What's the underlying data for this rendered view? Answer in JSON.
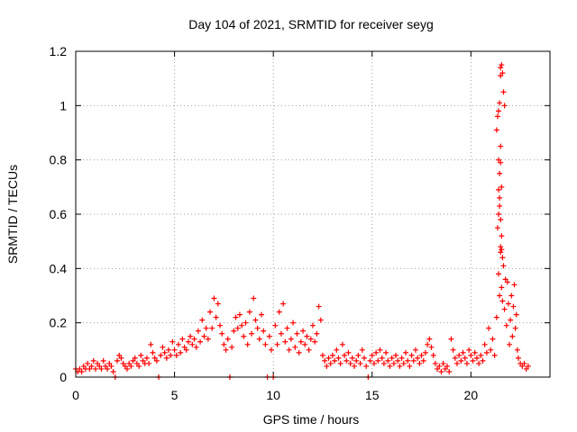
{
  "chart_data": {
    "type": "scatter",
    "title": "Day 104 of 2021, SRMTID for receiver seyg",
    "xlabel": "GPS time / hours",
    "ylabel": "SRMTID / TECUs",
    "xlim": [
      0,
      24
    ],
    "ylim": [
      0,
      1.2
    ],
    "xticks": [
      0,
      5,
      10,
      15,
      20
    ],
    "yticks": [
      0,
      0.2,
      0.4,
      0.6,
      0.8,
      1,
      1.2
    ],
    "xtick_labels": [
      "0",
      "5",
      "10",
      "15",
      "20"
    ],
    "ytick_labels": [
      "0",
      "0.2",
      "0.4",
      "0.6",
      "0.8",
      "1",
      "1.2"
    ],
    "grid": true,
    "marker": "+",
    "series": [
      {
        "name": "SRMTID",
        "color": "#ff0000",
        "points": [
          [
            0.0,
            0.03
          ],
          [
            0.1,
            0.02
          ],
          [
            0.2,
            0.03
          ],
          [
            0.3,
            0.02
          ],
          [
            0.4,
            0.04
          ],
          [
            0.5,
            0.03
          ],
          [
            0.6,
            0.05
          ],
          [
            0.7,
            0.03
          ],
          [
            0.8,
            0.04
          ],
          [
            0.9,
            0.06
          ],
          [
            1.0,
            0.03
          ],
          [
            1.1,
            0.05
          ],
          [
            1.2,
            0.04
          ],
          [
            1.3,
            0.03
          ],
          [
            1.4,
            0.06
          ],
          [
            1.5,
            0.04
          ],
          [
            1.6,
            0.03
          ],
          [
            1.7,
            0.05
          ],
          [
            1.8,
            0.04
          ],
          [
            1.9,
            0.02
          ],
          [
            2.0,
            0.0
          ],
          [
            2.1,
            0.06
          ],
          [
            2.2,
            0.08
          ],
          [
            2.3,
            0.07
          ],
          [
            2.4,
            0.05
          ],
          [
            2.5,
            0.04
          ],
          [
            2.6,
            0.03
          ],
          [
            2.7,
            0.05
          ],
          [
            2.8,
            0.04
          ],
          [
            2.9,
            0.06
          ],
          [
            3.0,
            0.07
          ],
          [
            3.1,
            0.05
          ],
          [
            3.2,
            0.04
          ],
          [
            3.3,
            0.08
          ],
          [
            3.4,
            0.06
          ],
          [
            3.5,
            0.05
          ],
          [
            3.6,
            0.07
          ],
          [
            3.7,
            0.05
          ],
          [
            3.8,
            0.12
          ],
          [
            3.9,
            0.09
          ],
          [
            4.0,
            0.07
          ],
          [
            4.1,
            0.06
          ],
          [
            4.2,
            0.0
          ],
          [
            4.3,
            0.08
          ],
          [
            4.4,
            0.11
          ],
          [
            4.5,
            0.09
          ],
          [
            4.6,
            0.07
          ],
          [
            4.7,
            0.1
          ],
          [
            4.8,
            0.08
          ],
          [
            4.9,
            0.13
          ],
          [
            5.0,
            0.1
          ],
          [
            5.1,
            0.08
          ],
          [
            5.2,
            0.12
          ],
          [
            5.3,
            0.09
          ],
          [
            5.4,
            0.14
          ],
          [
            5.5,
            0.11
          ],
          [
            5.6,
            0.1
          ],
          [
            5.7,
            0.13
          ],
          [
            5.8,
            0.15
          ],
          [
            5.9,
            0.12
          ],
          [
            6.0,
            0.14
          ],
          [
            6.1,
            0.11
          ],
          [
            6.2,
            0.17
          ],
          [
            6.3,
            0.13
          ],
          [
            6.4,
            0.21
          ],
          [
            6.5,
            0.15
          ],
          [
            6.6,
            0.18
          ],
          [
            6.7,
            0.14
          ],
          [
            6.8,
            0.24
          ],
          [
            6.9,
            0.18
          ],
          [
            7.0,
            0.29
          ],
          [
            7.1,
            0.22
          ],
          [
            7.2,
            0.27
          ],
          [
            7.3,
            0.19
          ],
          [
            7.4,
            0.16
          ],
          [
            7.5,
            0.12
          ],
          [
            7.6,
            0.1
          ],
          [
            7.7,
            0.14
          ],
          [
            7.8,
            0.0
          ],
          [
            7.9,
            0.11
          ],
          [
            8.0,
            0.17
          ],
          [
            8.1,
            0.22
          ],
          [
            8.2,
            0.18
          ],
          [
            8.3,
            0.23
          ],
          [
            8.4,
            0.19
          ],
          [
            8.5,
            0.15
          ],
          [
            8.6,
            0.2
          ],
          [
            8.7,
            0.12
          ],
          [
            8.8,
            0.24
          ],
          [
            8.9,
            0.16
          ],
          [
            9.0,
            0.29
          ],
          [
            9.1,
            0.21
          ],
          [
            9.2,
            0.18
          ],
          [
            9.3,
            0.14
          ],
          [
            9.4,
            0.23
          ],
          [
            9.5,
            0.17
          ],
          [
            9.6,
            0.12
          ],
          [
            9.7,
            0.0
          ],
          [
            9.8,
            0.15
          ],
          [
            9.9,
            0.1
          ],
          [
            10.0,
            0.0
          ],
          [
            10.1,
            0.19
          ],
          [
            10.2,
            0.12
          ],
          [
            10.3,
            0.24
          ],
          [
            10.4,
            0.16
          ],
          [
            10.5,
            0.27
          ],
          [
            10.6,
            0.13
          ],
          [
            10.7,
            0.18
          ],
          [
            10.8,
            0.1
          ],
          [
            10.9,
            0.14
          ],
          [
            11.0,
            0.2
          ],
          [
            11.1,
            0.11
          ],
          [
            11.2,
            0.16
          ],
          [
            11.3,
            0.09
          ],
          [
            11.4,
            0.13
          ],
          [
            11.5,
            0.17
          ],
          [
            11.6,
            0.12
          ],
          [
            11.7,
            0.15
          ],
          [
            11.8,
            0.1
          ],
          [
            11.9,
            0.14
          ],
          [
            12.0,
            0.19
          ],
          [
            12.1,
            0.13
          ],
          [
            12.2,
            0.16
          ],
          [
            12.3,
            0.26
          ],
          [
            12.4,
            0.21
          ],
          [
            12.5,
            0.08
          ],
          [
            12.6,
            0.06
          ],
          [
            12.7,
            0.04
          ],
          [
            12.8,
            0.07
          ],
          [
            12.9,
            0.05
          ],
          [
            13.0,
            0.08
          ],
          [
            13.1,
            0.06
          ],
          [
            13.2,
            0.1
          ],
          [
            13.3,
            0.07
          ],
          [
            13.4,
            0.05
          ],
          [
            13.5,
            0.12
          ],
          [
            13.6,
            0.08
          ],
          [
            13.7,
            0.06
          ],
          [
            13.8,
            0.09
          ],
          [
            13.9,
            0.05
          ],
          [
            14.0,
            0.07
          ],
          [
            14.1,
            0.04
          ],
          [
            14.2,
            0.06
          ],
          [
            14.3,
            0.08
          ],
          [
            14.4,
            0.05
          ],
          [
            14.5,
            0.1
          ],
          [
            14.6,
            0.07
          ],
          [
            14.7,
            0.04
          ],
          [
            14.8,
            0.0
          ],
          [
            14.9,
            0.06
          ],
          [
            15.0,
            0.08
          ],
          [
            15.1,
            0.05
          ],
          [
            15.2,
            0.09
          ],
          [
            15.3,
            0.06
          ],
          [
            15.4,
            0.1
          ],
          [
            15.5,
            0.07
          ],
          [
            15.6,
            0.05
          ],
          [
            15.7,
            0.09
          ],
          [
            15.8,
            0.06
          ],
          [
            15.9,
            0.04
          ],
          [
            16.0,
            0.07
          ],
          [
            16.1,
            0.05
          ],
          [
            16.2,
            0.08
          ],
          [
            16.3,
            0.06
          ],
          [
            16.4,
            0.04
          ],
          [
            16.5,
            0.07
          ],
          [
            16.6,
            0.05
          ],
          [
            16.7,
            0.09
          ],
          [
            16.8,
            0.06
          ],
          [
            16.9,
            0.04
          ],
          [
            17.0,
            0.08
          ],
          [
            17.1,
            0.06
          ],
          [
            17.2,
            0.1
          ],
          [
            17.3,
            0.07
          ],
          [
            17.4,
            0.05
          ],
          [
            17.5,
            0.08
          ],
          [
            17.6,
            0.06
          ],
          [
            17.7,
            0.09
          ],
          [
            17.8,
            0.12
          ],
          [
            17.9,
            0.14
          ],
          [
            18.0,
            0.11
          ],
          [
            18.1,
            0.08
          ],
          [
            18.2,
            0.05
          ],
          [
            18.3,
            0.03
          ],
          [
            18.4,
            0.04
          ],
          [
            18.5,
            0.02
          ],
          [
            18.6,
            0.05
          ],
          [
            18.7,
            0.03
          ],
          [
            18.8,
            0.04
          ],
          [
            18.9,
            0.02
          ],
          [
            19.0,
            0.14
          ],
          [
            19.1,
            0.1
          ],
          [
            19.2,
            0.07
          ],
          [
            19.3,
            0.05
          ],
          [
            19.4,
            0.08
          ],
          [
            19.5,
            0.06
          ],
          [
            19.6,
            0.09
          ],
          [
            19.7,
            0.07
          ],
          [
            19.8,
            0.05
          ],
          [
            19.9,
            0.1
          ],
          [
            20.0,
            0.08
          ],
          [
            20.1,
            0.06
          ],
          [
            20.2,
            0.09
          ],
          [
            20.3,
            0.07
          ],
          [
            20.4,
            0.05
          ],
          [
            20.5,
            0.08
          ],
          [
            20.6,
            0.06
          ],
          [
            20.7,
            0.12
          ],
          [
            20.8,
            0.09
          ],
          [
            20.9,
            0.18
          ],
          [
            21.0,
            0.1
          ],
          [
            21.1,
            0.14
          ],
          [
            21.2,
            0.08
          ],
          [
            21.3,
            0.22
          ],
          [
            21.4,
            0.38
          ],
          [
            21.45,
            0.3
          ],
          [
            21.5,
            0.46
          ],
          [
            21.55,
            0.33
          ],
          [
            21.6,
            0.28
          ],
          [
            21.65,
            0.41
          ],
          [
            21.7,
            0.25
          ],
          [
            21.75,
            0.36
          ],
          [
            21.8,
            0.19
          ],
          [
            21.85,
            0.35
          ],
          [
            21.9,
            0.27
          ],
          [
            21.95,
            0.12
          ],
          [
            22.0,
            0.21
          ],
          [
            22.05,
            0.3
          ],
          [
            22.1,
            0.15
          ],
          [
            22.15,
            0.26
          ],
          [
            22.2,
            0.34
          ],
          [
            22.25,
            0.18
          ],
          [
            22.3,
            0.23
          ],
          [
            22.35,
            0.1
          ],
          [
            22.4,
            0.07
          ],
          [
            22.5,
            0.05
          ],
          [
            22.6,
            0.04
          ],
          [
            22.7,
            0.05
          ],
          [
            22.8,
            0.03
          ],
          [
            22.9,
            0.04
          ],
          [
            21.3,
            0.91
          ],
          [
            21.35,
            0.96
          ],
          [
            21.4,
            0.98
          ],
          [
            21.45,
            1.01
          ],
          [
            21.5,
            1.11
          ],
          [
            21.55,
            1.15
          ],
          [
            21.6,
            1.12
          ],
          [
            21.65,
            1.05
          ],
          [
            21.7,
            1.0
          ],
          [
            21.5,
            1.14
          ],
          [
            21.4,
            0.8
          ],
          [
            21.45,
            0.75
          ],
          [
            21.5,
            0.79
          ],
          [
            21.55,
            0.7
          ],
          [
            21.4,
            0.69
          ],
          [
            21.45,
            0.63
          ],
          [
            21.5,
            0.58
          ],
          [
            21.55,
            0.52
          ],
          [
            21.4,
            0.6
          ],
          [
            21.5,
            0.48
          ],
          [
            21.55,
            0.47
          ],
          [
            21.45,
            0.66
          ],
          [
            21.6,
            0.44
          ],
          [
            21.35,
            0.55
          ],
          [
            21.5,
            0.85
          ]
        ]
      }
    ]
  }
}
